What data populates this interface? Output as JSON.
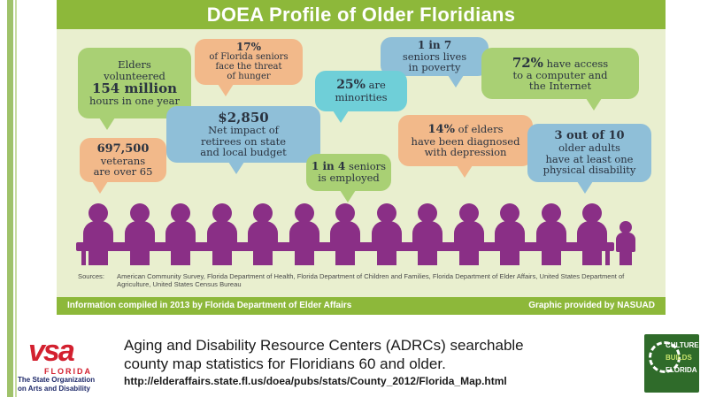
{
  "infographic": {
    "title": "DOEA Profile of Older Floridians",
    "bubbles": {
      "volunteer": {
        "line1": "Elders",
        "line2": "volunteered",
        "big": "154 million",
        "line3": "hours in one year"
      },
      "hunger": {
        "big": "17%",
        "line1": "of Florida seniors",
        "line2": "face the threat",
        "line3": "of hunger"
      },
      "poverty": {
        "big": "1 in 7",
        "line1": "seniors lives",
        "line2": "in poverty"
      },
      "computer": {
        "big": "72%",
        "line1": "have access",
        "line2": "to a computer and",
        "line3": "the Internet"
      },
      "minorities": {
        "big": "25%",
        "line1": "are",
        "line2": "minorities"
      },
      "budget": {
        "big": "$2,850",
        "line1": "Net impact of",
        "line2": "retirees on state",
        "line3": "and local budget"
      },
      "depression": {
        "big": "14%",
        "line1": "of elders",
        "line2": "have been diagnosed",
        "line3": "with depression"
      },
      "veterans": {
        "big": "697,500",
        "line1": "veterans",
        "line2": "are over 65"
      },
      "disability": {
        "big": "3 out of 10",
        "line1": "older adults",
        "line2": "have at least one",
        "line3": "physical disability"
      },
      "employed": {
        "big": "1 in 4",
        "line1": "seniors",
        "line2": "is employed"
      }
    },
    "sources_label": "Sources:",
    "sources_text": "American Community Survey, Florida Department of Health, Florida Department of Children and Families, Florida Department of Elder Affairs, United States Department of Agriculture, United States Census Bureau",
    "footer_left": "Information compiled in 2013 by Florida Department of Elder Affairs",
    "footer_right": "Graphic provided by NASUAD",
    "figure_color": "#8a2f86"
  },
  "logo_vsa": {
    "word": "vsa",
    "sub": "FLORIDA",
    "tag1": "The State Organization",
    "tag2": "on Arts and Disability"
  },
  "caption": {
    "line1": "Aging and Disability Resource Centers (ADRCs) searchable",
    "line2": "county map statistics for Floridians 60 and older.",
    "url": "http://elderaffairs.state.fl.us/doea/pubs/stats/County_2012/Florida_Map.html"
  },
  "logo_cbf": {
    "line1": "CULTURE",
    "line2": "BUILDS",
    "line3": "FLORIDA"
  }
}
